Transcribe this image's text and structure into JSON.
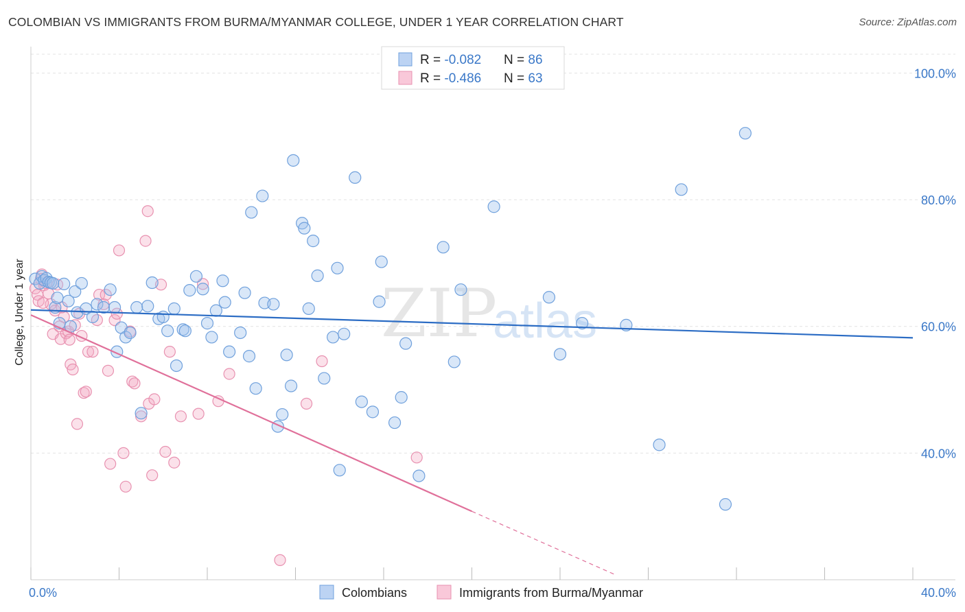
{
  "title": "COLOMBIAN VS IMMIGRANTS FROM BURMA/MYANMAR COLLEGE, UNDER 1 YEAR CORRELATION CHART",
  "source": "Source: ZipAtlas.com",
  "watermark": {
    "zip": "ZIP",
    "atlas": "atlas"
  },
  "chart_data": {
    "type": "scatter",
    "title": "COLOMBIAN VS IMMIGRANTS FROM BURMA/MYANMAR COLLEGE, UNDER 1 YEAR CORRELATION CHART",
    "xlabel": "",
    "ylabel": "College, Under 1 year",
    "xlim": [
      0,
      40
    ],
    "ylim": [
      20,
      102
    ],
    "x_tick_labels": [
      "0.0%",
      "40.0%"
    ],
    "y_ticks": [
      40,
      60,
      80,
      100
    ],
    "y_tick_labels": [
      "40.0%",
      "60.0%",
      "80.0%",
      "100.0%"
    ],
    "grid": "horizontal dashed",
    "legend_placement": "top-center",
    "colors": {
      "Colombians": "#6fa0dc",
      "Immigrants from Burma/Myanmar": "#e891b0",
      "blue_line": "#2b6cc4",
      "pink_line": "#e0709a"
    },
    "stats": [
      {
        "r_label": "R = ",
        "r_value": "-0.082",
        "n_label": "N = ",
        "n_value": "86"
      },
      {
        "r_label": "R = ",
        "r_value": "-0.486",
        "n_label": "N = ",
        "n_value": "63"
      }
    ],
    "series": [
      {
        "name": "Colombians",
        "trend": {
          "x": [
            0,
            40
          ],
          "y": [
            62.6,
            58.2
          ]
        },
        "points": [
          [
            0.2,
            67.5
          ],
          [
            0.4,
            66.8
          ],
          [
            0.5,
            67.9
          ],
          [
            0.6,
            67.3
          ],
          [
            0.7,
            67.6
          ],
          [
            0.8,
            67.0
          ],
          [
            0.9,
            66.9
          ],
          [
            1.0,
            66.8
          ],
          [
            1.1,
            63.0
          ],
          [
            1.2,
            64.5
          ],
          [
            1.3,
            60.5
          ],
          [
            1.5,
            66.7
          ],
          [
            1.7,
            64.0
          ],
          [
            1.8,
            60.0
          ],
          [
            2.0,
            65.5
          ],
          [
            2.1,
            62.2
          ],
          [
            2.3,
            66.8
          ],
          [
            2.5,
            62.8
          ],
          [
            2.8,
            61.5
          ],
          [
            3.0,
            63.5
          ],
          [
            3.3,
            63.0
          ],
          [
            3.6,
            65.8
          ],
          [
            3.8,
            63.0
          ],
          [
            3.9,
            56.0
          ],
          [
            4.1,
            59.8
          ],
          [
            4.3,
            58.3
          ],
          [
            4.5,
            59.0
          ],
          [
            4.8,
            63.0
          ],
          [
            5.0,
            46.3
          ],
          [
            5.3,
            63.2
          ],
          [
            5.5,
            66.9
          ],
          [
            5.8,
            61.2
          ],
          [
            6.0,
            61.5
          ],
          [
            6.2,
            59.3
          ],
          [
            6.5,
            62.8
          ],
          [
            6.6,
            53.8
          ],
          [
            6.9,
            59.5
          ],
          [
            7.0,
            59.3
          ],
          [
            7.2,
            65.7
          ],
          [
            7.5,
            67.9
          ],
          [
            7.8,
            65.9
          ],
          [
            8.0,
            60.5
          ],
          [
            8.2,
            58.3
          ],
          [
            8.4,
            62.5
          ],
          [
            8.7,
            67.2
          ],
          [
            8.8,
            63.8
          ],
          [
            9.0,
            56.0
          ],
          [
            9.5,
            59.0
          ],
          [
            9.7,
            65.3
          ],
          [
            9.9,
            55.3
          ],
          [
            10.2,
            50.2
          ],
          [
            10.0,
            78.0
          ],
          [
            10.5,
            80.6
          ],
          [
            10.6,
            63.7
          ],
          [
            11.0,
            63.5
          ],
          [
            11.2,
            44.2
          ],
          [
            11.4,
            46.1
          ],
          [
            11.6,
            55.5
          ],
          [
            11.8,
            50.6
          ],
          [
            11.9,
            86.2
          ],
          [
            12.3,
            76.3
          ],
          [
            12.4,
            75.5
          ],
          [
            12.6,
            62.8
          ],
          [
            12.8,
            73.5
          ],
          [
            13.0,
            68.0
          ],
          [
            13.3,
            51.8
          ],
          [
            13.7,
            58.3
          ],
          [
            13.9,
            69.2
          ],
          [
            14.0,
            37.3
          ],
          [
            14.2,
            58.8
          ],
          [
            14.7,
            83.5
          ],
          [
            15.0,
            48.1
          ],
          [
            15.5,
            46.5
          ],
          [
            15.8,
            63.9
          ],
          [
            15.9,
            70.2
          ],
          [
            16.5,
            44.8
          ],
          [
            16.8,
            48.8
          ],
          [
            17.0,
            57.3
          ],
          [
            17.6,
            36.4
          ],
          [
            18.7,
            72.5
          ],
          [
            19.2,
            54.4
          ],
          [
            19.5,
            65.8
          ],
          [
            21.0,
            78.9
          ],
          [
            23.5,
            64.6
          ],
          [
            24.0,
            55.6
          ],
          [
            25.0,
            60.5
          ],
          [
            27.0,
            60.2
          ],
          [
            28.5,
            41.3
          ],
          [
            29.5,
            81.6
          ],
          [
            31.5,
            31.9
          ],
          [
            32.4,
            90.5
          ]
        ]
      },
      {
        "name": "Immigrants from Burma/Myanmar",
        "trend": {
          "x": [
            0,
            20
          ],
          "y": [
            61.8,
            30.8
          ]
        },
        "trend_dashed": {
          "x": [
            20,
            26.5
          ],
          "y": [
            30.8,
            20.8
          ]
        },
        "points": [
          [
            0.2,
            66.0
          ],
          [
            0.3,
            65.0
          ],
          [
            0.35,
            64.0
          ],
          [
            0.5,
            68.2
          ],
          [
            0.6,
            66.5
          ],
          [
            0.7,
            66.8
          ],
          [
            0.8,
            65.2
          ],
          [
            0.9,
            63.5
          ],
          [
            1.0,
            58.8
          ],
          [
            1.1,
            62.5
          ],
          [
            1.2,
            66.6
          ],
          [
            1.3,
            60.0
          ],
          [
            1.35,
            58.0
          ],
          [
            1.5,
            61.5
          ],
          [
            1.6,
            58.9
          ],
          [
            1.7,
            59.2
          ],
          [
            1.75,
            57.9
          ],
          [
            1.8,
            54.0
          ],
          [
            1.9,
            53.2
          ],
          [
            2.0,
            60.2
          ],
          [
            2.1,
            44.6
          ],
          [
            2.2,
            62.0
          ],
          [
            2.4,
            49.5
          ],
          [
            2.5,
            49.7
          ],
          [
            2.6,
            56.0
          ],
          [
            2.8,
            56.0
          ],
          [
            3.0,
            61.0
          ],
          [
            3.1,
            65.0
          ],
          [
            3.3,
            63.5
          ],
          [
            3.4,
            65.0
          ],
          [
            3.5,
            53.0
          ],
          [
            3.6,
            38.3
          ],
          [
            3.8,
            61.0
          ],
          [
            3.9,
            62.0
          ],
          [
            4.0,
            72.0
          ],
          [
            4.2,
            40.0
          ],
          [
            4.3,
            34.7
          ],
          [
            4.5,
            59.2
          ],
          [
            4.6,
            51.3
          ],
          [
            4.7,
            51.0
          ],
          [
            5.0,
            45.8
          ],
          [
            5.2,
            73.5
          ],
          [
            5.3,
            78.2
          ],
          [
            5.35,
            47.8
          ],
          [
            5.5,
            36.5
          ],
          [
            5.6,
            48.5
          ],
          [
            5.9,
            66.6
          ],
          [
            6.1,
            40.2
          ],
          [
            6.3,
            56.0
          ],
          [
            6.5,
            38.5
          ],
          [
            6.8,
            45.8
          ],
          [
            7.6,
            46.2
          ],
          [
            7.8,
            66.7
          ],
          [
            8.5,
            48.2
          ],
          [
            9.0,
            52.5
          ],
          [
            11.3,
            23.1
          ],
          [
            12.5,
            47.8
          ],
          [
            13.2,
            54.5
          ],
          [
            17.5,
            39.3
          ],
          [
            0.45,
            67.5
          ],
          [
            0.55,
            63.7
          ],
          [
            1.4,
            63.0
          ],
          [
            2.3,
            58.5
          ]
        ]
      }
    ]
  },
  "legend_bottom": [
    {
      "label": "Colombians"
    },
    {
      "label": "Immigrants from Burma/Myanmar"
    }
  ]
}
